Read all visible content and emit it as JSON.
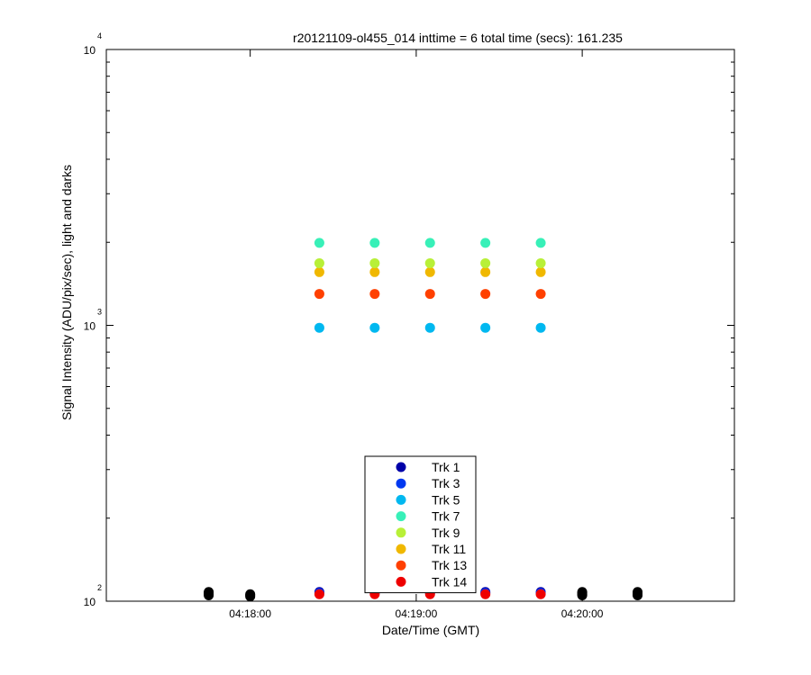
{
  "chart_data": {
    "type": "scatter",
    "title": "r20121109-ol455_014 inttime = 6 total time (secs): 161.235",
    "xlabel": "Date/Time (GMT)",
    "ylabel": "Signal Intensity (ADU/pix/sec), light and darks",
    "yscale": "log",
    "ylim": [
      100,
      10000
    ],
    "xlim": [
      "04:17:08",
      "04:20:55"
    ],
    "xticks": [
      "04:18:00",
      "04:19:00",
      "04:20:00"
    ],
    "yticks": [
      {
        "base": "10",
        "exp": "2",
        "value": 100
      },
      {
        "base": "10",
        "exp": "3",
        "value": 1000
      },
      {
        "base": "10",
        "exp": "4",
        "value": 10000
      }
    ],
    "legend_position": "bottom-center",
    "light_x": [
      "04:18:25",
      "04:18:45",
      "04:19:05",
      "04:19:25",
      "04:19:45"
    ],
    "dark_x": [
      "04:17:45",
      "04:18:00",
      "04:20:00",
      "04:20:20"
    ],
    "series": [
      {
        "name": "Trk 1",
        "color": "#0000a8",
        "values": [
          108,
          108,
          108,
          108,
          108
        ]
      },
      {
        "name": "Trk 3",
        "color": "#0038f0",
        "values": [
          107,
          107,
          107,
          107,
          107
        ]
      },
      {
        "name": "Trk 5",
        "color": "#00b8f0",
        "values": [
          980,
          980,
          980,
          980,
          980
        ]
      },
      {
        "name": "Trk 7",
        "color": "#38f0b8",
        "values": [
          1990,
          1990,
          1990,
          1990,
          1990
        ]
      },
      {
        "name": "Trk 9",
        "color": "#b8f038",
        "values": [
          1680,
          1680,
          1680,
          1680,
          1680
        ]
      },
      {
        "name": "Trk 11",
        "color": "#f0b800",
        "values": [
          1560,
          1560,
          1560,
          1560,
          1560
        ]
      },
      {
        "name": "Trk 13",
        "color": "#ff4000",
        "values": [
          1300,
          1300,
          1300,
          1300,
          1300
        ]
      },
      {
        "name": "Trk 14",
        "color": "#ee0000",
        "values": [
          106,
          106,
          106,
          106,
          106
        ]
      }
    ],
    "darks": {
      "color": "#000000",
      "values": [
        [
          105,
          106,
          107,
          108
        ],
        [
          104,
          105,
          106
        ],
        [
          105,
          106,
          107,
          108
        ],
        [
          105,
          106,
          107,
          108
        ]
      ]
    }
  }
}
